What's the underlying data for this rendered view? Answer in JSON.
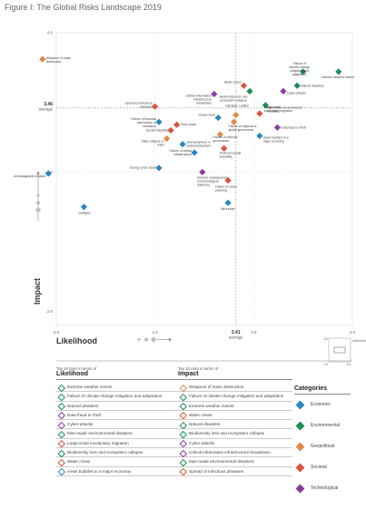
{
  "page_title": "Figure I: The Global Risks Landscape 2019",
  "colors": {
    "Economic": "#2a86c2",
    "Environmental": "#1b8e55",
    "Geopolitical": "#e0894a",
    "Societal": "#d9523f",
    "Technological": "#8a3d9e",
    "Societal_alt": "#e9645a"
  },
  "chart_data": {
    "type": "scatter",
    "xlabel": "Likelihood",
    "ylabel": "Impact",
    "xlim": [
      2.5,
      4.0
    ],
    "ylim": [
      1.9,
      4.0
    ],
    "x_ticks": [
      "2.5",
      "3.0",
      "3.5",
      "4.0"
    ],
    "y_ticks": [
      "4.0",
      "3.0",
      "2.0"
    ],
    "avg_likelihood": 3.41,
    "avg_likelihood_label": "3.41",
    "avg_likelihood_sub": "average",
    "avg_impact": 3.46,
    "avg_impact_label": "3.46",
    "avg_impact_sub": "average",
    "points": [
      {
        "label": "Weapons of mass destruction",
        "x": 2.43,
        "y": 3.81,
        "cat": "Geopolitical"
      },
      {
        "label": "Failure of climate-change mitigation and adaptation",
        "x": 3.75,
        "y": 3.72,
        "cat": "Environmental"
      },
      {
        "label": "Extreme weather events",
        "x": 3.93,
        "y": 3.72,
        "cat": "Environmental"
      },
      {
        "label": "Natural disasters",
        "x": 3.72,
        "y": 3.62,
        "cat": "Environmental"
      },
      {
        "label": "Water crises",
        "x": 3.45,
        "y": 3.62,
        "cat": "Societal"
      },
      {
        "label": "Biodiversity loss and ecosystem collapse",
        "x": 3.48,
        "y": 3.58,
        "cat": "Environmental"
      },
      {
        "label": "Cyber-attacks",
        "x": 3.65,
        "y": 3.58,
        "cat": "Technological"
      },
      {
        "label": "Critical information infrastructure breakdown",
        "x": 3.3,
        "y": 3.56,
        "cat": "Technological"
      },
      {
        "label": "Man-made environmental disasters",
        "x": 3.56,
        "y": 3.48,
        "cat": "Environmental"
      },
      {
        "label": "Spread of infectious diseases",
        "x": 3.0,
        "y": 3.47,
        "cat": "Societal"
      },
      {
        "label": "Interstate conflict",
        "x": 3.41,
        "y": 3.41,
        "cat": "Geopolitical"
      },
      {
        "label": "Large-scale involuntary migration",
        "x": 3.53,
        "y": 3.42,
        "cat": "Societal"
      },
      {
        "label": "Fiscal crises",
        "x": 3.32,
        "y": 3.39,
        "cat": "Economic"
      },
      {
        "label": "Failure of financial mechanism or institution",
        "x": 3.02,
        "y": 3.36,
        "cat": "Economic"
      },
      {
        "label": "Food crises",
        "x": 3.11,
        "y": 3.34,
        "cat": "Societal"
      },
      {
        "label": "Failure of regional or global governance",
        "x": 3.4,
        "y": 3.36,
        "cat": "Geopolitical"
      },
      {
        "label": "Data fraud or theft",
        "x": 3.62,
        "y": 3.32,
        "cat": "Technological"
      },
      {
        "label": "Social instability",
        "x": 3.08,
        "y": 3.3,
        "cat": "Societal"
      },
      {
        "label": "State collapse or crisis",
        "x": 3.06,
        "y": 3.24,
        "cat": "Geopolitical"
      },
      {
        "label": "Failure of national governance",
        "x": 3.33,
        "y": 3.27,
        "cat": "Geopolitical"
      },
      {
        "label": "Asset bubbles in a major economy",
        "x": 3.53,
        "y": 3.26,
        "cat": "Economic"
      },
      {
        "label": "Unemployment or underemployment",
        "x": 3.14,
        "y": 3.2,
        "cat": "Economic"
      },
      {
        "label": "Profound social instability",
        "x": 3.35,
        "y": 3.17,
        "cat": "Societal"
      },
      {
        "label": "Failure of critical infrastructure",
        "x": 3.2,
        "y": 3.14,
        "cat": "Economic"
      },
      {
        "label": "Energy price shock",
        "x": 3.02,
        "y": 3.03,
        "cat": "Economic"
      },
      {
        "label": "Adverse consequences of technological advances",
        "x": 3.24,
        "y": 3.0,
        "cat": "Technological"
      },
      {
        "label": "Unmanageable inflation",
        "x": 2.46,
        "y": 2.99,
        "cat": "Economic"
      },
      {
        "label": "Failure of urban planning",
        "x": 3.37,
        "y": 2.94,
        "cat": "Societal"
      },
      {
        "label": "Illicit trade",
        "x": 3.37,
        "y": 2.78,
        "cat": "Economic"
      },
      {
        "label": "Deflation",
        "x": 2.64,
        "y": 2.75,
        "cat": "Economic"
      }
    ]
  },
  "likelihood_title": "Likelihood",
  "impact_title": "Impact",
  "left_legend": {
    "head_small": "Top 10 risks in terms of",
    "head_big": "Likelihood",
    "items": [
      "Extreme weather events",
      "Failure of climate-change mitigation and adaptation",
      "Natural disasters",
      "Data fraud or theft",
      "Cyber-attacks",
      "Man-made environmental disasters",
      "Large-scale involuntary migration",
      "Biodiversity loss and ecosystem collapse",
      "Water crises",
      "Asset bubbles in a major economy"
    ]
  },
  "right_legend": {
    "head_small": "Top 10 risks in terms of",
    "head_big": "Impact",
    "items": [
      "Weapons of mass destruction",
      "Failure of climate-change mitigation and adaptation",
      "Extreme weather events",
      "Water crises",
      "Natural disasters",
      "Biodiversity loss and ecosystem collapse",
      "Cyber-attacks",
      "Critical information infrastructure breakdown",
      "Man-made environmental disasters",
      "Spread of infectious diseases"
    ]
  },
  "categories": {
    "title": "Categories",
    "items": [
      {
        "label": "Economic",
        "key": "Economic"
      },
      {
        "label": "Environmental",
        "key": "Environmental"
      },
      {
        "label": "Geopolitical",
        "key": "Geopolitical"
      },
      {
        "label": "Societal",
        "key": "Societal"
      },
      {
        "label": "Technological",
        "key": "Technological"
      }
    ]
  },
  "inset": {
    "plotted_area": "plotted area",
    "t5": "5.0",
    "t1": "1.0"
  }
}
